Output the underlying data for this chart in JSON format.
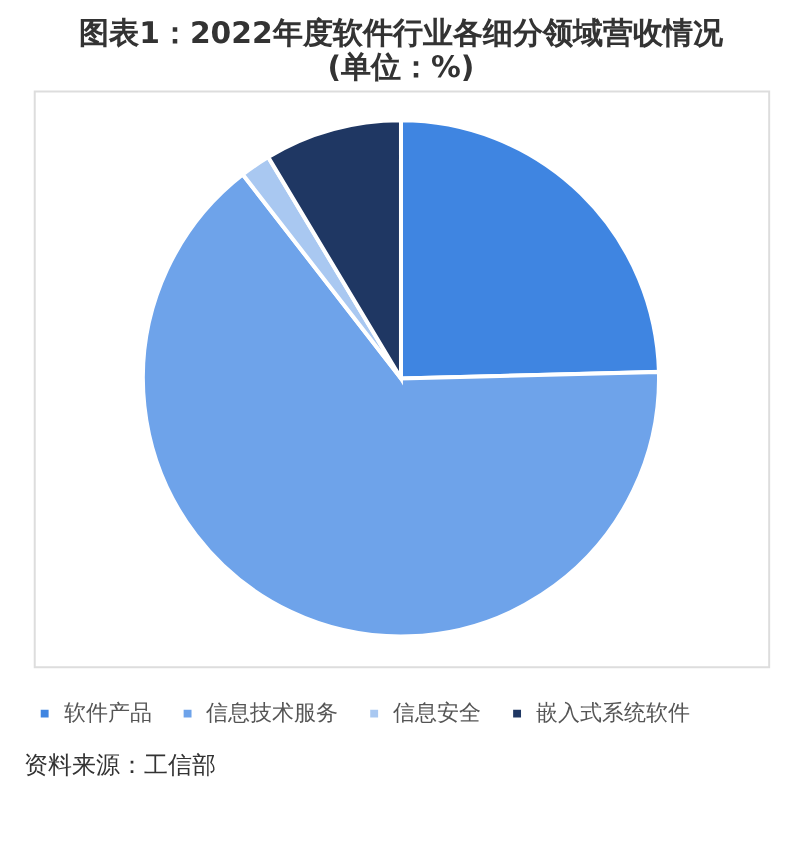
{
  "chart_data": {
    "type": "pie",
    "title": [
      "图表1：2022年度软件行业各细分领域营收情况",
      "(单位：%)"
    ],
    "categories": [
      "软件产品",
      "信息技术服务",
      "信息安全",
      "嵌入式系统软件"
    ],
    "values": [
      24.6,
      64.9,
      1.9,
      8.6
    ],
    "colors": [
      "#3f85e1",
      "#6ea3ea",
      "#a9c8f1",
      "#1f3763"
    ],
    "legend": "bottom",
    "annotations": [
      "资料来源：工信部"
    ]
  }
}
